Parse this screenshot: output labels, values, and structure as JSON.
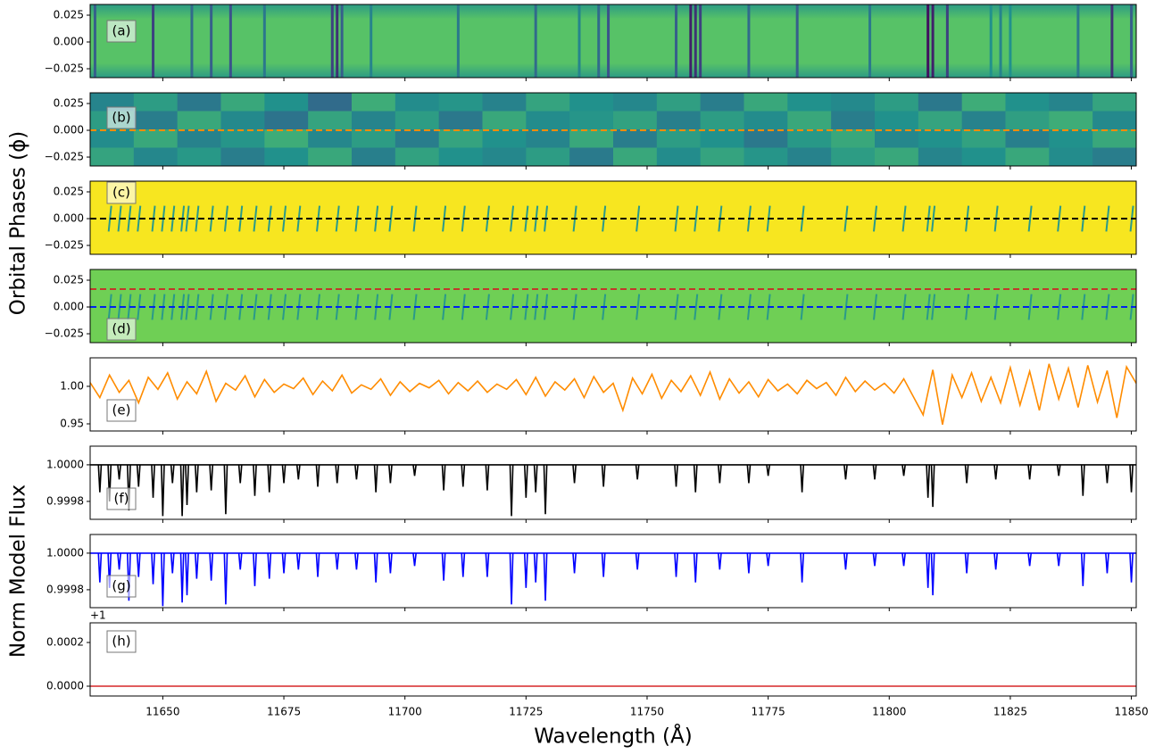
{
  "figure": {
    "xlabel": "Wavelength (Å)",
    "ylabel_phase": "Orbital Phases (ϕ)",
    "ylabel_flux": "Norm Model Flux",
    "xlim": [
      11635,
      11851
    ],
    "xticks": [
      11650,
      11675,
      11700,
      11725,
      11750,
      11775,
      11800,
      11825,
      11850
    ]
  },
  "chart_data": [
    {
      "type": "heatmap",
      "label": "(a)",
      "colormap": "viridis",
      "background_value": 0.72,
      "x": [
        11636,
        11648,
        11656,
        11660,
        11664,
        11671,
        11685,
        11686,
        11687,
        11693,
        11711,
        11727,
        11736,
        11740,
        11742,
        11756,
        11759,
        11760,
        11761,
        11771,
        11781,
        11796,
        11808,
        11809,
        11812,
        11821,
        11823,
        11825,
        11839,
        11846,
        11850
      ],
      "values": [
        0.3,
        0.2,
        0.35,
        0.3,
        0.25,
        0.4,
        0.2,
        0.15,
        0.3,
        0.45,
        0.4,
        0.35,
        0.45,
        0.35,
        0.25,
        0.3,
        0.1,
        0.15,
        0.2,
        0.35,
        0.3,
        0.4,
        0.05,
        0.1,
        0.2,
        0.5,
        0.45,
        0.5,
        0.4,
        0.15,
        0.3
      ],
      "ylim": [
        -0.0333,
        0.035
      ],
      "yticks": [
        {
          "value": -0.025,
          "label": "−0.025"
        },
        {
          "value": 0,
          "label": "0.000"
        },
        0.025
      ]
    },
    {
      "type": "heatmap",
      "label": "(b)",
      "colormap": "viridis",
      "z": [
        [
          0.45,
          0.55,
          0.4,
          0.6,
          0.5,
          0.35,
          0.62,
          0.48,
          0.52,
          0.44,
          0.58,
          0.5,
          0.46,
          0.56,
          0.42,
          0.6,
          0.5,
          0.47,
          0.55,
          0.4,
          0.62,
          0.5,
          0.45,
          0.58
        ],
        [
          0.55,
          0.42,
          0.6,
          0.47,
          0.38,
          0.58,
          0.45,
          0.55,
          0.4,
          0.6,
          0.48,
          0.52,
          0.57,
          0.43,
          0.55,
          0.48,
          0.6,
          0.42,
          0.5,
          0.58,
          0.44,
          0.56,
          0.62,
          0.47
        ],
        [
          0.48,
          0.6,
          0.44,
          0.52,
          0.62,
          0.46,
          0.55,
          0.42,
          0.58,
          0.5,
          0.45,
          0.6,
          0.42,
          0.55,
          0.5,
          0.4,
          0.53,
          0.6,
          0.46,
          0.5,
          0.57,
          0.43,
          0.5,
          0.6
        ],
        [
          0.58,
          0.46,
          0.53,
          0.42,
          0.5,
          0.6,
          0.43,
          0.57,
          0.5,
          0.46,
          0.55,
          0.41,
          0.6,
          0.48,
          0.58,
          0.52,
          0.44,
          0.55,
          0.6,
          0.45,
          0.5,
          0.6,
          0.48,
          0.42
        ]
      ],
      "hlines": [
        {
          "y": 0,
          "color": "#ff8c00"
        }
      ],
      "ylim": [
        -0.0333,
        0.035
      ],
      "yticks": [
        {
          "value": -0.025,
          "label": "−0.025"
        },
        {
          "value": 0,
          "label": "0.000"
        },
        0.025
      ]
    },
    {
      "type": "segments",
      "label": "(c)",
      "background": "#f7e620",
      "segment_color": "#2a9a8a",
      "phase_range": [
        -0.012,
        0.012
      ],
      "x": [
        11639,
        11641,
        11643,
        11645,
        11648,
        11650,
        11652,
        11654,
        11655,
        11657,
        11660,
        11663,
        11666,
        11669,
        11672,
        11675,
        11678,
        11682,
        11686,
        11690,
        11694,
        11697,
        11702,
        11708,
        11712,
        11717,
        11722,
        11725,
        11727,
        11729,
        11735,
        11741,
        11748,
        11756,
        11760,
        11765,
        11771,
        11775,
        11782,
        11791,
        11797,
        11803,
        11808,
        11809,
        11816,
        11822,
        11829,
        11835,
        11840,
        11845,
        11850
      ],
      "hlines": [
        {
          "y": 0,
          "color": "#000000"
        }
      ],
      "ylim": [
        -0.0333,
        0.035
      ],
      "yticks": [
        {
          "value": -0.025,
          "label": "−0.025"
        },
        {
          "value": 0,
          "label": "0.000"
        },
        0.025
      ]
    },
    {
      "type": "segments",
      "label": "(d)",
      "background": "#6fcf55",
      "segment_color": "#2a9a8a",
      "phase_range": [
        -0.012,
        0.012
      ],
      "x": [
        11639,
        11641,
        11643,
        11645,
        11648,
        11650,
        11652,
        11654,
        11655,
        11657,
        11660,
        11663,
        11666,
        11669,
        11672,
        11675,
        11678,
        11682,
        11686,
        11690,
        11694,
        11697,
        11702,
        11708,
        11712,
        11717,
        11722,
        11725,
        11727,
        11729,
        11735,
        11741,
        11748,
        11756,
        11760,
        11765,
        11771,
        11775,
        11782,
        11791,
        11797,
        11803,
        11808,
        11809,
        11816,
        11822,
        11829,
        11835,
        11840,
        11845,
        11850
      ],
      "hlines": [
        {
          "y": 0.0167,
          "color": "#c0392b"
        },
        {
          "y": 0,
          "color": "#0022ee"
        }
      ],
      "ylim": [
        -0.0333,
        0.035
      ],
      "yticks": [
        {
          "value": -0.025,
          "label": "−0.025"
        },
        {
          "value": 0,
          "label": "0.000"
        },
        0.025
      ]
    },
    {
      "type": "line",
      "label": "(e)",
      "color": "#ff8c00",
      "x": [
        11635,
        11637,
        11639,
        11641,
        11643,
        11645,
        11647,
        11649,
        11651,
        11653,
        11655,
        11657,
        11659,
        11661,
        11663,
        11665,
        11667,
        11669,
        11671,
        11673,
        11675,
        11677,
        11679,
        11681,
        11683,
        11685,
        11687,
        11689,
        11691,
        11693,
        11695,
        11697,
        11699,
        11701,
        11703,
        11705,
        11707,
        11709,
        11711,
        11713,
        11715,
        11717,
        11719,
        11721,
        11723,
        11725,
        11727,
        11729,
        11731,
        11733,
        11735,
        11737,
        11739,
        11741,
        11743,
        11745,
        11747,
        11749,
        11751,
        11753,
        11755,
        11757,
        11759,
        11761,
        11763,
        11765,
        11767,
        11769,
        11771,
        11773,
        11775,
        11777,
        11779,
        11781,
        11783,
        11785,
        11787,
        11789,
        11791,
        11793,
        11795,
        11797,
        11799,
        11801,
        11803,
        11805,
        11807,
        11809,
        11811,
        11813,
        11815,
        11817,
        11819,
        11821,
        11823,
        11825,
        11827,
        11829,
        11831,
        11833,
        11835,
        11837,
        11839,
        11841,
        11843,
        11845,
        11847,
        11849,
        11851
      ],
      "values": [
        1.005,
        0.985,
        1.015,
        0.992,
        1.008,
        0.978,
        1.012,
        0.996,
        1.018,
        0.983,
        1.006,
        0.99,
        1.02,
        0.98,
        1.004,
        0.995,
        1.014,
        0.986,
        1.009,
        0.992,
        1.003,
        0.997,
        1.011,
        0.989,
        1.007,
        0.994,
        1.015,
        0.991,
        1.002,
        0.996,
        1.01,
        0.988,
        1.006,
        0.993,
        1.004,
        0.998,
        1.008,
        0.99,
        1.005,
        0.994,
        1.007,
        0.992,
        1.003,
        0.996,
        1.009,
        0.989,
        1.012,
        0.987,
        1.006,
        0.995,
        1.01,
        0.985,
        1.013,
        0.992,
        1.004,
        0.968,
        1.011,
        0.99,
        1.016,
        0.984,
        1.008,
        0.993,
        1.014,
        0.988,
        1.019,
        0.983,
        1.01,
        0.991,
        1.006,
        0.986,
        1.009,
        0.994,
        1.003,
        0.99,
        1.008,
        0.997,
        1.005,
        0.988,
        1.012,
        0.993,
        1.007,
        0.995,
        1.004,
        0.991,
        1.01,
        0.986,
        0.962,
        1.022,
        0.949,
        1.015,
        0.985,
        1.018,
        0.98,
        1.012,
        0.978,
        1.025,
        0.975,
        1.02,
        0.968,
        1.03,
        0.983,
        1.024,
        0.972,
        1.028,
        0.979,
        1.021,
        0.958,
        1.026,
        1.004
      ],
      "ylim": [
        0.9405,
        1.038
      ],
      "yticks": [
        0.95,
        {
          "value": 1,
          "label": "1.00"
        }
      ]
    },
    {
      "type": "absorption",
      "label": "(f)",
      "color": "#000000",
      "continuum": 1,
      "line_centers": [
        11637,
        11639,
        11641,
        11643,
        11645,
        11648,
        11650,
        11652,
        11654,
        11655,
        11657,
        11660,
        11663,
        11666,
        11669,
        11672,
        11675,
        11678,
        11682,
        11686,
        11690,
        11694,
        11697,
        11702,
        11708,
        11712,
        11717,
        11722,
        11725,
        11727,
        11729,
        11735,
        11741,
        11748,
        11756,
        11760,
        11765,
        11771,
        11775,
        11782,
        11791,
        11797,
        11803,
        11808,
        11809,
        11816,
        11822,
        11829,
        11835,
        11840,
        11845,
        11850
      ],
      "values": [
        0.99985,
        0.9998,
        0.99992,
        0.99975,
        0.99988,
        0.99982,
        0.99972,
        0.9999,
        0.99972,
        0.99978,
        0.99985,
        0.99986,
        0.99973,
        0.9999,
        0.99983,
        0.99985,
        0.9999,
        0.99992,
        0.99988,
        0.9999,
        0.99992,
        0.99985,
        0.9999,
        0.99994,
        0.99986,
        0.99988,
        0.99986,
        0.99972,
        0.99982,
        0.99985,
        0.99973,
        0.9999,
        0.99988,
        0.99992,
        0.99988,
        0.99985,
        0.9999,
        0.9999,
        0.99994,
        0.99985,
        0.99992,
        0.99992,
        0.99994,
        0.99982,
        0.99977,
        0.9999,
        0.99992,
        0.99992,
        0.99994,
        0.99983,
        0.9999,
        0.99985
      ],
      "ylim": [
        0.999702,
        1.000102
      ],
      "yticks": [
        0.9998,
        {
          "value": 1,
          "label": "1.0000"
        }
      ]
    },
    {
      "type": "absorption",
      "label": "(g)",
      "color": "#0000ff",
      "continuum": 1,
      "line_centers": [
        11637,
        11639,
        11641,
        11643,
        11645,
        11648,
        11650,
        11652,
        11654,
        11655,
        11657,
        11660,
        11663,
        11666,
        11669,
        11672,
        11675,
        11678,
        11682,
        11686,
        11690,
        11694,
        11697,
        11702,
        11708,
        11712,
        11717,
        11722,
        11725,
        11727,
        11729,
        11735,
        11741,
        11748,
        11756,
        11760,
        11765,
        11771,
        11775,
        11782,
        11791,
        11797,
        11803,
        11808,
        11809,
        11816,
        11822,
        11829,
        11835,
        11840,
        11845,
        11850
      ],
      "values": [
        0.99984,
        0.99981,
        0.99991,
        0.99974,
        0.99987,
        0.99983,
        0.99971,
        0.99989,
        0.99973,
        0.99977,
        0.99986,
        0.99985,
        0.99972,
        0.99991,
        0.99982,
        0.99986,
        0.99989,
        0.99991,
        0.99987,
        0.99991,
        0.99991,
        0.99984,
        0.99989,
        0.99993,
        0.99985,
        0.99987,
        0.99987,
        0.99972,
        0.99981,
        0.99984,
        0.99974,
        0.99989,
        0.99987,
        0.99991,
        0.99987,
        0.99984,
        0.99991,
        0.99989,
        0.99993,
        0.99984,
        0.99991,
        0.99993,
        0.99993,
        0.99981,
        0.99977,
        0.99989,
        0.99991,
        0.99993,
        0.99993,
        0.99982,
        0.99989,
        0.99984
      ],
      "ylim": [
        0.999702,
        1.000102
      ],
      "yticks": [
        0.9998,
        {
          "value": 1,
          "label": "1.0000"
        }
      ]
    },
    {
      "type": "line",
      "label": "(h)",
      "color": "#d62728",
      "offset_label": "+1",
      "x": [
        11635,
        11851
      ],
      "values": [
        0,
        0
      ],
      "ylim": [
        -4.5e-05,
        0.00029
      ],
      "yticks": [
        {
          "value": 0,
          "label": "0.0000"
        },
        0.0002
      ]
    }
  ]
}
